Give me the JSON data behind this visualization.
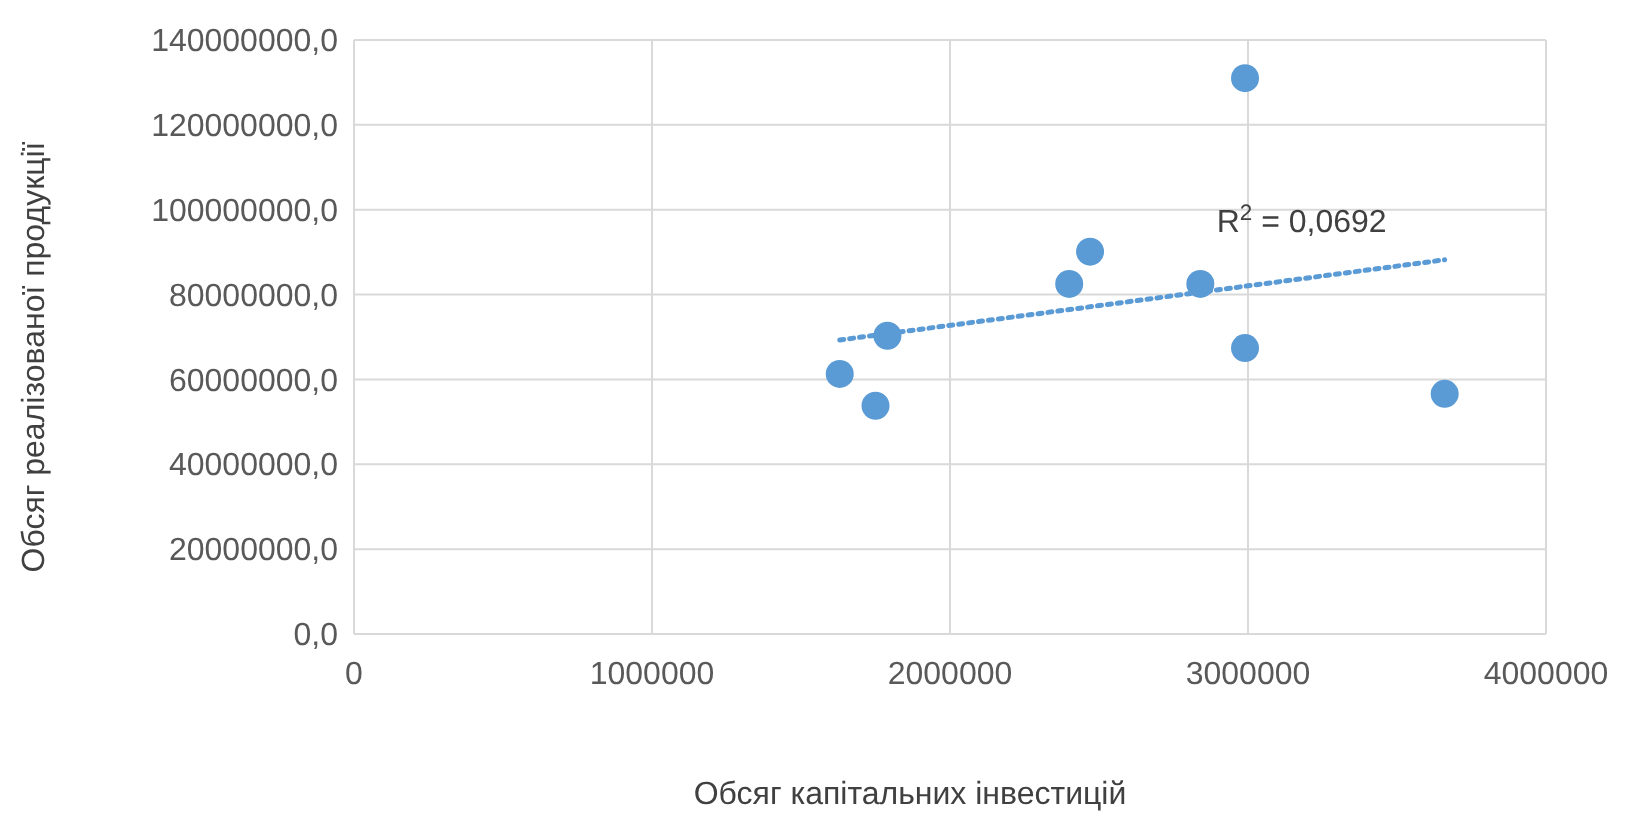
{
  "chart_data": {
    "type": "scatter",
    "xlabel": "Обсяг капітальних інвестицій",
    "ylabel": "Обсяг реалізованої продукції",
    "series": [
      {
        "color": "#5b9bd5",
        "x": [
          1630000,
          1750000,
          1790000,
          2400000,
          2470000,
          2840000,
          2990000,
          2990000,
          3660000
        ],
        "values": [
          61300000,
          53800000,
          70300000,
          82500000,
          90100000,
          82500000,
          131000000,
          67400000,
          56600000
        ]
      },
      {
        "type": "line",
        "line_style": "dotted",
        "marker": "none",
        "color": "#5b9bd5",
        "x": [
          1630000,
          3660000
        ],
        "values": [
          69300000,
          88200000
        ]
      }
    ],
    "marker": "circle",
    "xlim": [
      0,
      4000000
    ],
    "xticks": [
      0,
      1000000,
      2000000,
      3000000,
      4000000
    ],
    "ylim": [
      0,
      140000000
    ],
    "yticks": [
      {
        "value": 0,
        "label": "0,0"
      },
      {
        "value": 20000000,
        "label": "20000000,0"
      },
      {
        "value": 40000000,
        "label": "40000000,0"
      },
      {
        "value": 60000000,
        "label": "60000000,0"
      },
      {
        "value": 80000000,
        "label": "80000000,0"
      },
      {
        "value": 100000000,
        "label": "100000000,0"
      },
      {
        "value": 120000000,
        "label": "120000000,0"
      },
      {
        "value": 140000000,
        "label": "140000000,0"
      }
    ],
    "grid": true,
    "annotations": [
      "R$^{2}$ = 0,0692"
    ]
  }
}
